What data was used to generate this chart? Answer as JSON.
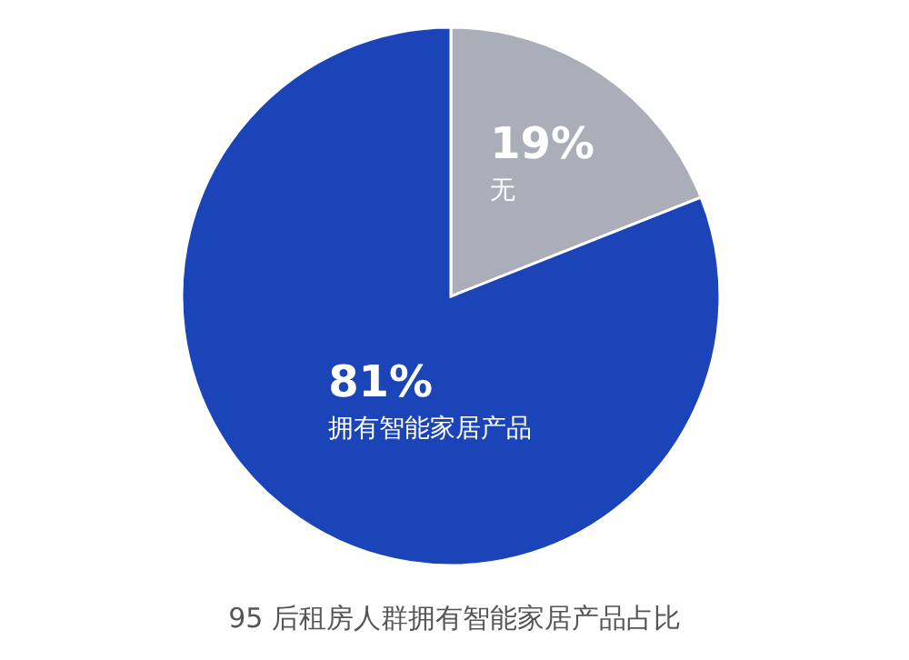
{
  "chart_data": {
    "type": "pie",
    "title": "95 后租房人群拥有智能家居产品占比",
    "categories": [
      "无",
      "拥有智能家居产品"
    ],
    "values": [
      19,
      81
    ],
    "colors": [
      "#a9aeb8",
      "#1a44b8"
    ],
    "value_labels": [
      "19%",
      "81%"
    ]
  }
}
